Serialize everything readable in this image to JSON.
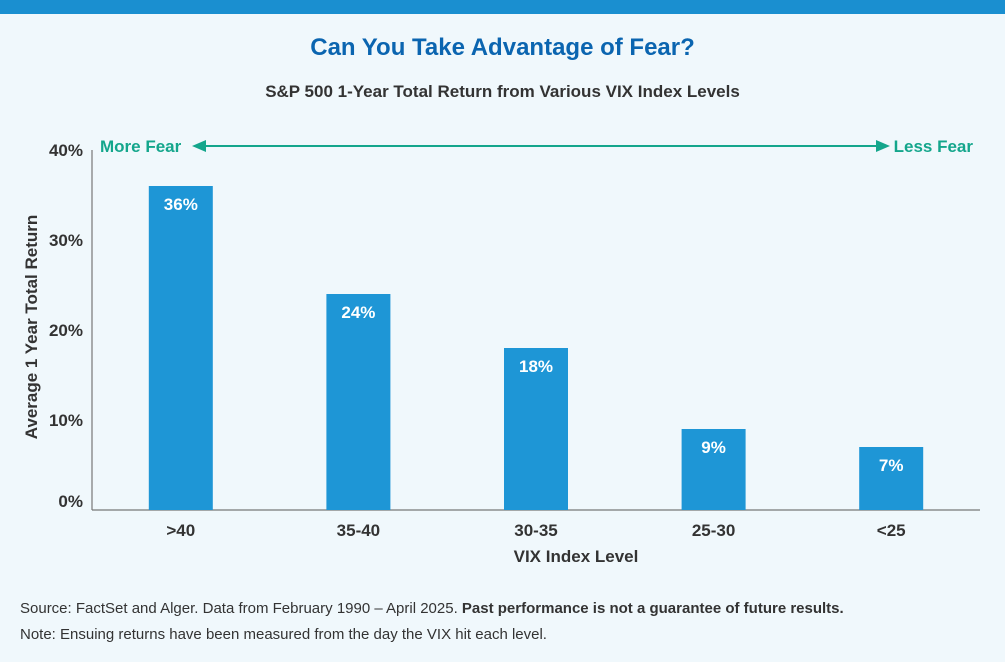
{
  "header": {
    "title": "Can You Take Advantage of Fear?",
    "subtitle": "S&P 500 1-Year Total Return from Various VIX Index Levels"
  },
  "colors": {
    "topbar": "#1a8fd0",
    "title": "#0b65b0",
    "bar": "#1e96d6",
    "fear_arrow": "#14a68c",
    "axis": "#777777",
    "text": "#333333",
    "background": "#f0f8fc"
  },
  "chart_data": {
    "type": "bar",
    "title": "S&P 500 1-Year Total Return from Various VIX Index Levels",
    "xlabel": "VIX Index Level",
    "ylabel": "Average 1 Year Total Return",
    "categories": [
      ">40",
      "35-40",
      "30-35",
      "25-30",
      "<25"
    ],
    "values": [
      36,
      24,
      18,
      9,
      7
    ],
    "data_labels": [
      "36%",
      "24%",
      "18%",
      "9%",
      "7%"
    ],
    "ylim": [
      0,
      40
    ],
    "yticks": [
      0,
      10,
      20,
      30,
      40
    ],
    "ytick_labels": [
      "0%",
      "10%",
      "20%",
      "30%",
      "40%"
    ],
    "grid": false,
    "fear_scale": {
      "left_label": "More Fear",
      "right_label": "Less Fear"
    }
  },
  "footer": {
    "source_text": "Source: FactSet and Alger. Data from February 1990 – April 2025. ",
    "source_bold": "Past performance is not a guarantee of future results.",
    "note": "Note: Ensuing returns have been measured from the day the VIX hit each level."
  }
}
